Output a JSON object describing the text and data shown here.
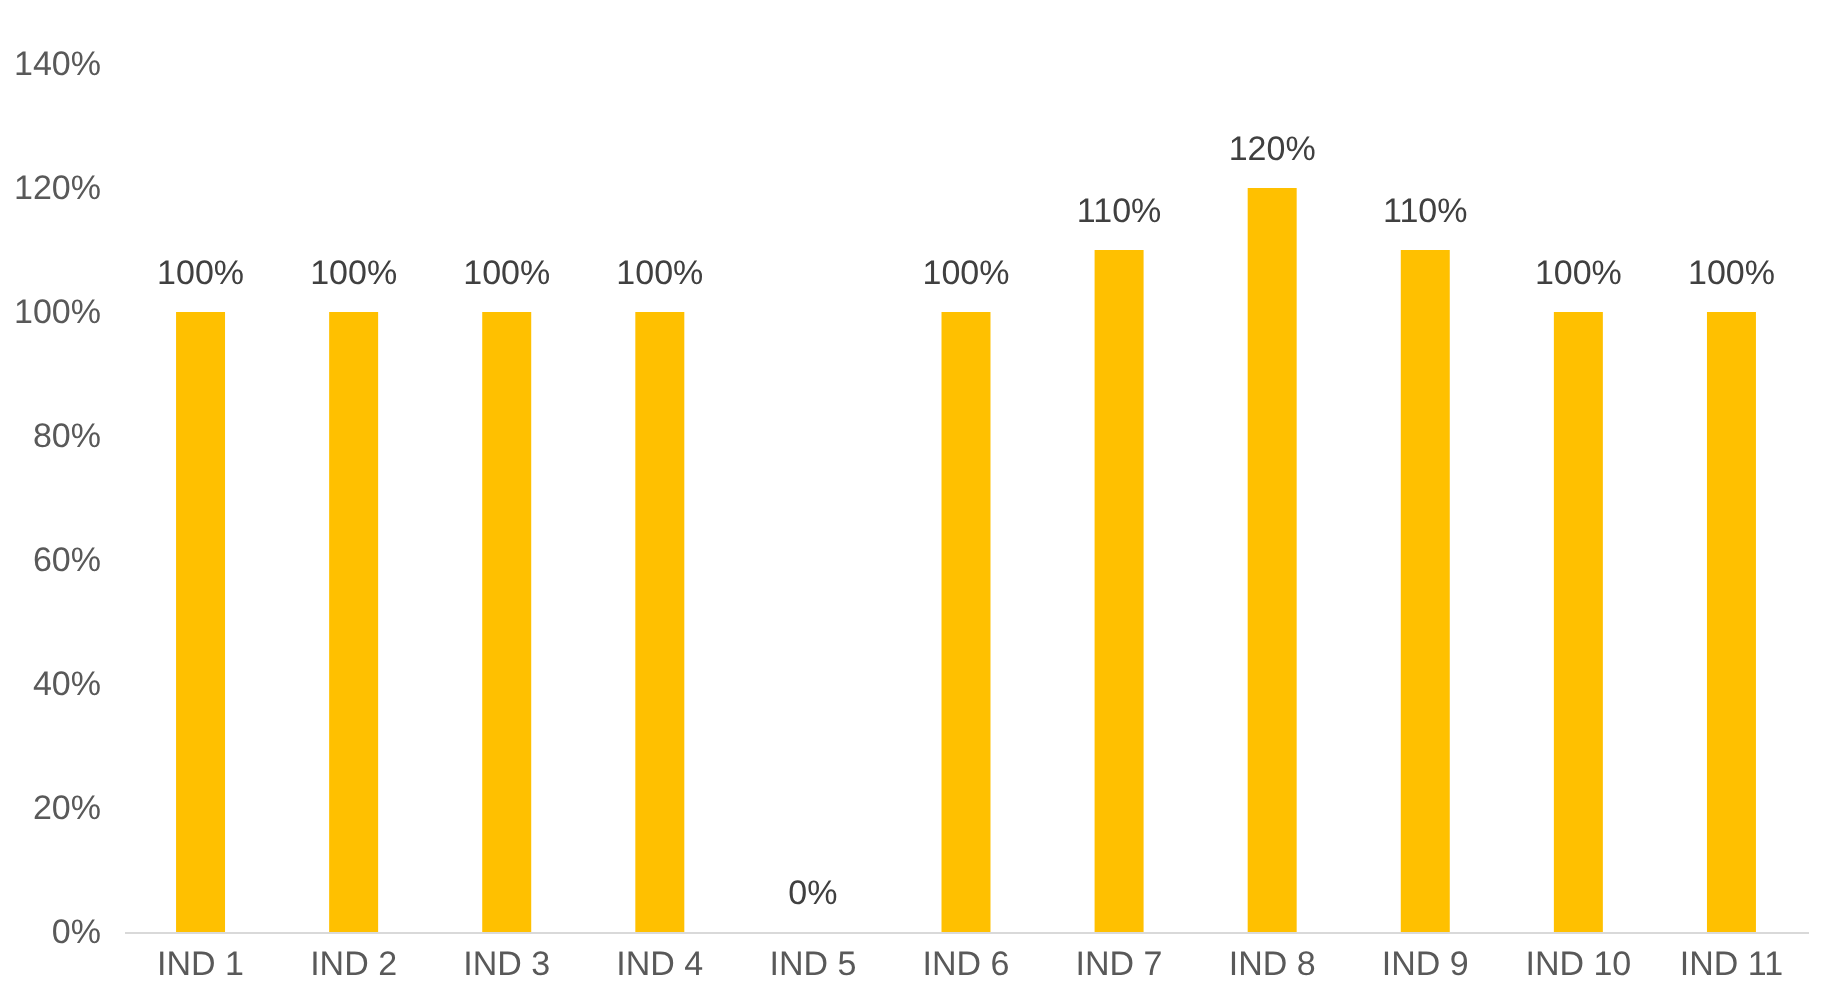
{
  "chart_data": {
    "type": "bar",
    "categories": [
      "IND 1",
      "IND 2",
      "IND 3",
      "IND 4",
      "IND 5",
      "IND 6",
      "IND 7",
      "IND 8",
      "IND 9",
      "IND 10",
      "IND 11"
    ],
    "values": [
      100,
      100,
      100,
      100,
      0,
      100,
      110,
      120,
      110,
      100,
      100
    ],
    "value_labels": [
      "100%",
      "100%",
      "100%",
      "100%",
      "0%",
      "100%",
      "110%",
      "120%",
      "110%",
      "100%",
      "100%"
    ],
    "color": "#ffc000",
    "ylim": [
      0,
      140
    ],
    "yticks": [
      {
        "value": 0,
        "label": "0%"
      },
      {
        "value": 20,
        "label": "20%"
      },
      {
        "value": 40,
        "label": "40%"
      },
      {
        "value": 60,
        "label": "60%"
      },
      {
        "value": 80,
        "label": "80%"
      },
      {
        "value": 100,
        "label": "100%"
      },
      {
        "value": 120,
        "label": "120%"
      },
      {
        "value": 140,
        "label": "140%"
      }
    ],
    "grid": false
  }
}
